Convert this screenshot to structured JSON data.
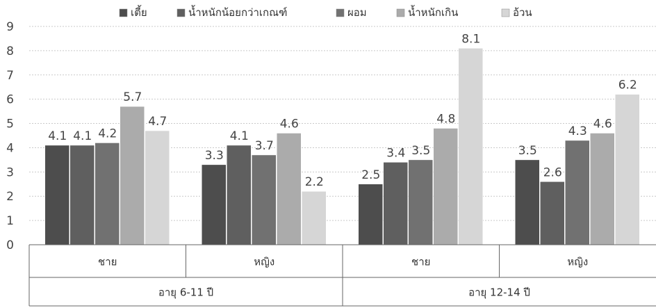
{
  "chart_data": {
    "type": "bar",
    "title": "",
    "xlabel": "",
    "ylabel": "",
    "ylim": [
      0,
      9
    ],
    "yticks": [
      0,
      1,
      2,
      3,
      4,
      5,
      6,
      7,
      8,
      9
    ],
    "grid": true,
    "legend_position": "top",
    "categories": [
      "ชาย",
      "หญิง",
      "ชาย",
      "หญิง"
    ],
    "group_labels": [
      {
        "label": "อายุ 6-11 ปี",
        "span": 2
      },
      {
        "label": "อายุ 12-14 ปี",
        "span": 2
      }
    ],
    "series": [
      {
        "name": "เตี้ย",
        "values": [
          4.1,
          3.3,
          2.5,
          3.5
        ],
        "color": "#4d4d4d"
      },
      {
        "name": "น้ำหนักน้อยกว่าเกณฑ์",
        "values": [
          4.1,
          4.1,
          3.4,
          2.6
        ],
        "color": "#5f5f5f"
      },
      {
        "name": "ผอม",
        "values": [
          4.2,
          3.7,
          3.5,
          4.3
        ],
        "color": "#717171"
      },
      {
        "name": "น้ำหนักเกิน",
        "values": [
          5.7,
          4.6,
          4.8,
          4.6
        ],
        "color": "#ababab"
      },
      {
        "name": "อ้วน",
        "values": [
          4.7,
          2.2,
          8.1,
          6.2
        ],
        "color": "#d6d6d6"
      }
    ]
  }
}
